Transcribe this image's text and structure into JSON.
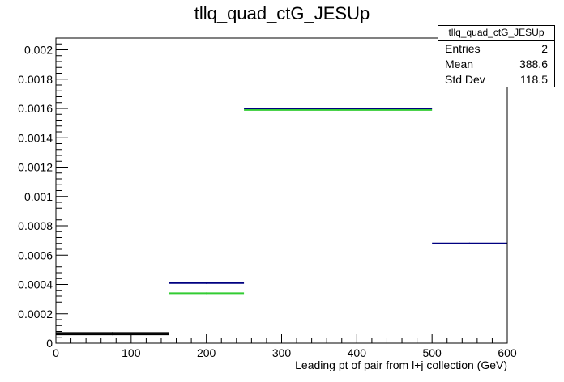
{
  "chart_data": {
    "type": "bar",
    "title": "tllq_quad_ctG_JESUp",
    "xlabel": "Leading pt of pair from l+j collection (GeV)",
    "ylabel": "",
    "xlim": [
      0,
      600
    ],
    "ylim": [
      0,
      0.00208
    ],
    "xticks": [
      "0",
      "100",
      "200",
      "300",
      "400",
      "500",
      "600"
    ],
    "yticks": [
      "0",
      "0.0002",
      "0.0004",
      "0.0006",
      "0.0008",
      "0.001",
      "0.0012",
      "0.0014",
      "0.0016",
      "0.0018",
      "0.002"
    ],
    "ytick_values": [
      0,
      0.0002,
      0.0004,
      0.0006,
      0.0008,
      0.001,
      0.0012,
      0.0014,
      0.0016,
      0.0018,
      0.002
    ],
    "bins": [
      [
        0,
        150
      ],
      [
        150,
        250
      ],
      [
        250,
        500
      ],
      [
        500,
        600
      ]
    ],
    "series": [
      {
        "color": "#000000",
        "values": [
          6e-05,
          null,
          null,
          null
        ]
      },
      {
        "color": "#000000",
        "values": [
          7e-05,
          null,
          null,
          null
        ]
      },
      {
        "color": "#33cc33",
        "values": [
          null,
          0.00034,
          0.00159,
          null
        ]
      },
      {
        "color": "#000080",
        "values": [
          null,
          0.00041,
          0.0016,
          0.00068
        ]
      }
    ],
    "stats": {
      "name": "tllq_quad_ctG_JESUp",
      "rows": [
        {
          "label": "Entries",
          "value": "2"
        },
        {
          "label": "Mean",
          "value": "388.6"
        },
        {
          "label": "Std Dev",
          "value": "118.5"
        }
      ]
    },
    "grid": false,
    "legend": "none"
  }
}
